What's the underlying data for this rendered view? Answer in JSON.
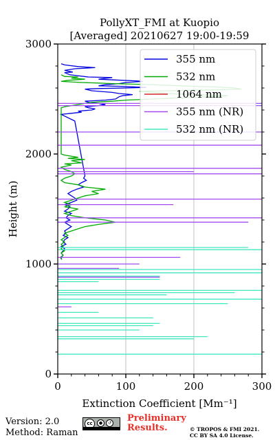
{
  "chart_data": {
    "type": "line",
    "title": "PollyXT_FMI at Kuopio",
    "subtitle": "[Averaged] 20210627 19:00-19:59",
    "xlabel": "Extinction Coefficient [Mm⁻¹]",
    "ylabel": "Height (m)",
    "xlim": [
      0,
      300
    ],
    "ylim": [
      0,
      3000
    ],
    "xticks": [
      0,
      100,
      200,
      300
    ],
    "yticks": [
      0,
      1000,
      2000,
      3000
    ],
    "grid": "vertical",
    "legend_position": "top-right",
    "series": [
      {
        "name": "355 nm",
        "color": "#0000dd",
        "points": [
          [
            5,
            2820
          ],
          [
            10,
            2810
          ],
          [
            30,
            2795
          ],
          [
            55,
            2785
          ],
          [
            25,
            2775
          ],
          [
            10,
            2760
          ],
          [
            22,
            2745
          ],
          [
            10,
            2740
          ],
          [
            18,
            2720
          ],
          [
            45,
            2700
          ],
          [
            80,
            2695
          ],
          [
            60,
            2680
          ],
          [
            95,
            2670
          ],
          [
            115,
            2665
          ],
          [
            125,
            2660
          ],
          [
            100,
            2650
          ],
          [
            90,
            2640
          ],
          [
            70,
            2630
          ],
          [
            60,
            2620
          ],
          [
            95,
            2615
          ],
          [
            130,
            2605
          ],
          [
            60,
            2595
          ],
          [
            40,
            2590
          ],
          [
            50,
            2575
          ],
          [
            80,
            2560
          ],
          [
            90,
            2550
          ],
          [
            110,
            2540
          ],
          [
            95,
            2530
          ],
          [
            90,
            2520
          ],
          [
            85,
            2500
          ],
          [
            70,
            2490
          ],
          [
            40,
            2480
          ],
          [
            45,
            2470
          ],
          [
            60,
            2460
          ],
          [
            70,
            2450
          ],
          [
            60,
            2440
          ],
          [
            40,
            2430
          ],
          [
            45,
            2420
          ],
          [
            55,
            2410
          ],
          [
            50,
            2400
          ],
          [
            30,
            2390
          ],
          [
            35,
            2380
          ],
          [
            20,
            2370
          ],
          [
            5,
            2360
          ],
          [
            10,
            2345
          ],
          [
            25,
            2300
          ],
          [
            40,
            1800
          ],
          [
            38,
            1780
          ],
          [
            42,
            1760
          ],
          [
            35,
            1740
          ],
          [
            30,
            1720
          ],
          [
            38,
            1700
          ],
          [
            28,
            1680
          ],
          [
            20,
            1660
          ],
          [
            15,
            1640
          ],
          [
            20,
            1620
          ],
          [
            25,
            1600
          ],
          [
            28,
            1580
          ],
          [
            20,
            1560
          ],
          [
            10,
            1540
          ],
          [
            18,
            1520
          ],
          [
            15,
            1500
          ],
          [
            10,
            1480
          ],
          [
            20,
            1460
          ],
          [
            15,
            1440
          ],
          [
            12,
            1420
          ],
          [
            18,
            1400
          ],
          [
            10,
            1380
          ],
          [
            15,
            1360
          ],
          [
            20,
            1340
          ],
          [
            15,
            1320
          ],
          [
            10,
            1300
          ],
          [
            12,
            1280
          ],
          [
            8,
            1260
          ],
          [
            15,
            1240
          ],
          [
            10,
            1220
          ],
          [
            8,
            1200
          ],
          [
            12,
            1180
          ],
          [
            5,
            1160
          ],
          [
            10,
            1140
          ],
          [
            8,
            1120
          ],
          [
            5,
            1100
          ],
          [
            8,
            1080
          ],
          [
            4,
            1060
          ],
          [
            6,
            1040
          ]
        ]
      },
      {
        "name": "532 nm",
        "color": "#00aa00",
        "points": [
          [
            5,
            2720
          ],
          [
            10,
            2705
          ],
          [
            30,
            2700
          ],
          [
            20,
            2690
          ],
          [
            40,
            2680
          ],
          [
            15,
            2670
          ],
          [
            5,
            2660
          ],
          [
            35,
            2650
          ],
          [
            60,
            2645
          ],
          [
            80,
            2640
          ],
          [
            110,
            2635
          ],
          [
            140,
            2630
          ],
          [
            180,
            2620
          ],
          [
            200,
            2615
          ],
          [
            230,
            2610
          ],
          [
            260,
            2600
          ],
          [
            270,
            2590
          ],
          [
            240,
            2585
          ],
          [
            200,
            2580
          ],
          [
            160,
            2575
          ],
          [
            120,
            2570
          ],
          [
            140,
            2560
          ],
          [
            160,
            2550
          ],
          [
            200,
            2540
          ],
          [
            250,
            2530
          ],
          [
            220,
            2520
          ],
          [
            180,
            2510
          ],
          [
            140,
            2500
          ],
          [
            100,
            2490
          ],
          [
            80,
            2480
          ],
          [
            50,
            2470
          ],
          [
            40,
            2460
          ],
          [
            30,
            2450
          ],
          [
            20,
            2440
          ],
          [
            10,
            2430
          ],
          [
            5,
            2420
          ],
          [
            5,
            2000
          ],
          [
            10,
            1990
          ],
          [
            30,
            1970
          ],
          [
            15,
            1960
          ],
          [
            40,
            1950
          ],
          [
            20,
            1940
          ],
          [
            35,
            1920
          ],
          [
            10,
            1910
          ],
          [
            20,
            1900
          ],
          [
            5,
            1880
          ],
          [
            10,
            1860
          ],
          [
            20,
            1840
          ],
          [
            25,
            1820
          ],
          [
            20,
            1800
          ],
          [
            10,
            1780
          ],
          [
            5,
            1760
          ],
          [
            10,
            1740
          ],
          [
            30,
            1720
          ],
          [
            40,
            1700
          ],
          [
            70,
            1680
          ],
          [
            50,
            1660
          ],
          [
            60,
            1640
          ],
          [
            40,
            1620
          ],
          [
            30,
            1600
          ],
          [
            20,
            1580
          ],
          [
            10,
            1560
          ],
          [
            20,
            1540
          ],
          [
            10,
            1520
          ],
          [
            30,
            1500
          ],
          [
            20,
            1480
          ],
          [
            10,
            1460
          ],
          [
            20,
            1440
          ],
          [
            40,
            1420
          ],
          [
            70,
            1400
          ],
          [
            85,
            1380
          ],
          [
            60,
            1360
          ],
          [
            40,
            1340
          ],
          [
            30,
            1320
          ],
          [
            20,
            1300
          ],
          [
            10,
            1280
          ],
          [
            15,
            1260
          ],
          [
            10,
            1240
          ],
          [
            5,
            1220
          ],
          [
            10,
            1200
          ],
          [
            5,
            1180
          ],
          [
            8,
            1160
          ],
          [
            5,
            1140
          ],
          [
            10,
            1120
          ],
          [
            5,
            1100
          ],
          [
            8,
            1080
          ],
          [
            5,
            1060
          ],
          [
            6,
            1040
          ]
        ]
      },
      {
        "name": "1064 nm",
        "color": "#d62728",
        "points": []
      },
      {
        "name": "355 nm (NR)",
        "color": "#a14cf0",
        "points": [
          [
            0,
            2460
          ],
          [
            300,
            2460
          ],
          [
            0,
            2440
          ],
          [
            300,
            2440
          ],
          [
            0,
            2200
          ],
          [
            300,
            2200
          ],
          [
            0,
            2080
          ],
          [
            300,
            2080
          ],
          [
            0,
            1870
          ],
          [
            300,
            1870
          ],
          [
            0,
            1840
          ],
          [
            200,
            1840
          ],
          [
            0,
            1820
          ],
          [
            300,
            1820
          ],
          [
            0,
            1590
          ],
          [
            300,
            1590
          ],
          [
            0,
            1540
          ],
          [
            170,
            1540
          ],
          [
            0,
            1420
          ],
          [
            300,
            1420
          ],
          [
            0,
            1380
          ],
          [
            280,
            1380
          ],
          [
            0,
            1060
          ],
          [
            180,
            1060
          ],
          [
            0,
            1000
          ],
          [
            120,
            1000
          ],
          [
            0,
            960
          ],
          [
            90,
            960
          ],
          [
            0,
            880
          ],
          [
            150,
            880
          ],
          [
            0,
            610
          ],
          [
            20,
            610
          ]
        ]
      },
      {
        "name": "532 nm (NR)",
        "color": "#40e8c0",
        "points": [
          [
            0,
            1150
          ],
          [
            280,
            1150
          ],
          [
            0,
            1130
          ],
          [
            300,
            1130
          ],
          [
            0,
            950
          ],
          [
            300,
            950
          ],
          [
            0,
            920
          ],
          [
            300,
            920
          ],
          [
            0,
            890
          ],
          [
            150,
            890
          ],
          [
            0,
            860
          ],
          [
            150,
            860
          ],
          [
            0,
            840
          ],
          [
            60,
            840
          ],
          [
            0,
            760
          ],
          [
            300,
            760
          ],
          [
            0,
            740
          ],
          [
            260,
            740
          ],
          [
            0,
            720
          ],
          [
            160,
            720
          ],
          [
            0,
            680
          ],
          [
            300,
            680
          ],
          [
            0,
            640
          ],
          [
            250,
            640
          ],
          [
            0,
            560
          ],
          [
            60,
            560
          ],
          [
            0,
            510
          ],
          [
            140,
            510
          ],
          [
            0,
            460
          ],
          [
            150,
            460
          ],
          [
            0,
            440
          ],
          [
            140,
            440
          ],
          [
            0,
            400
          ],
          [
            120,
            400
          ],
          [
            0,
            340
          ],
          [
            220,
            340
          ],
          [
            0,
            320
          ],
          [
            200,
            320
          ],
          [
            0,
            180
          ],
          [
            300,
            180
          ]
        ]
      }
    ]
  },
  "footer": {
    "version": "Version: 2.0",
    "method": "Method: Raman",
    "preliminary": "Preliminary Results.",
    "copyright_line1": "© TROPOS & FMI 2021.",
    "copyright_line2": "CC BY SA 4.0 License.",
    "cc_badge": "cc by sa"
  }
}
